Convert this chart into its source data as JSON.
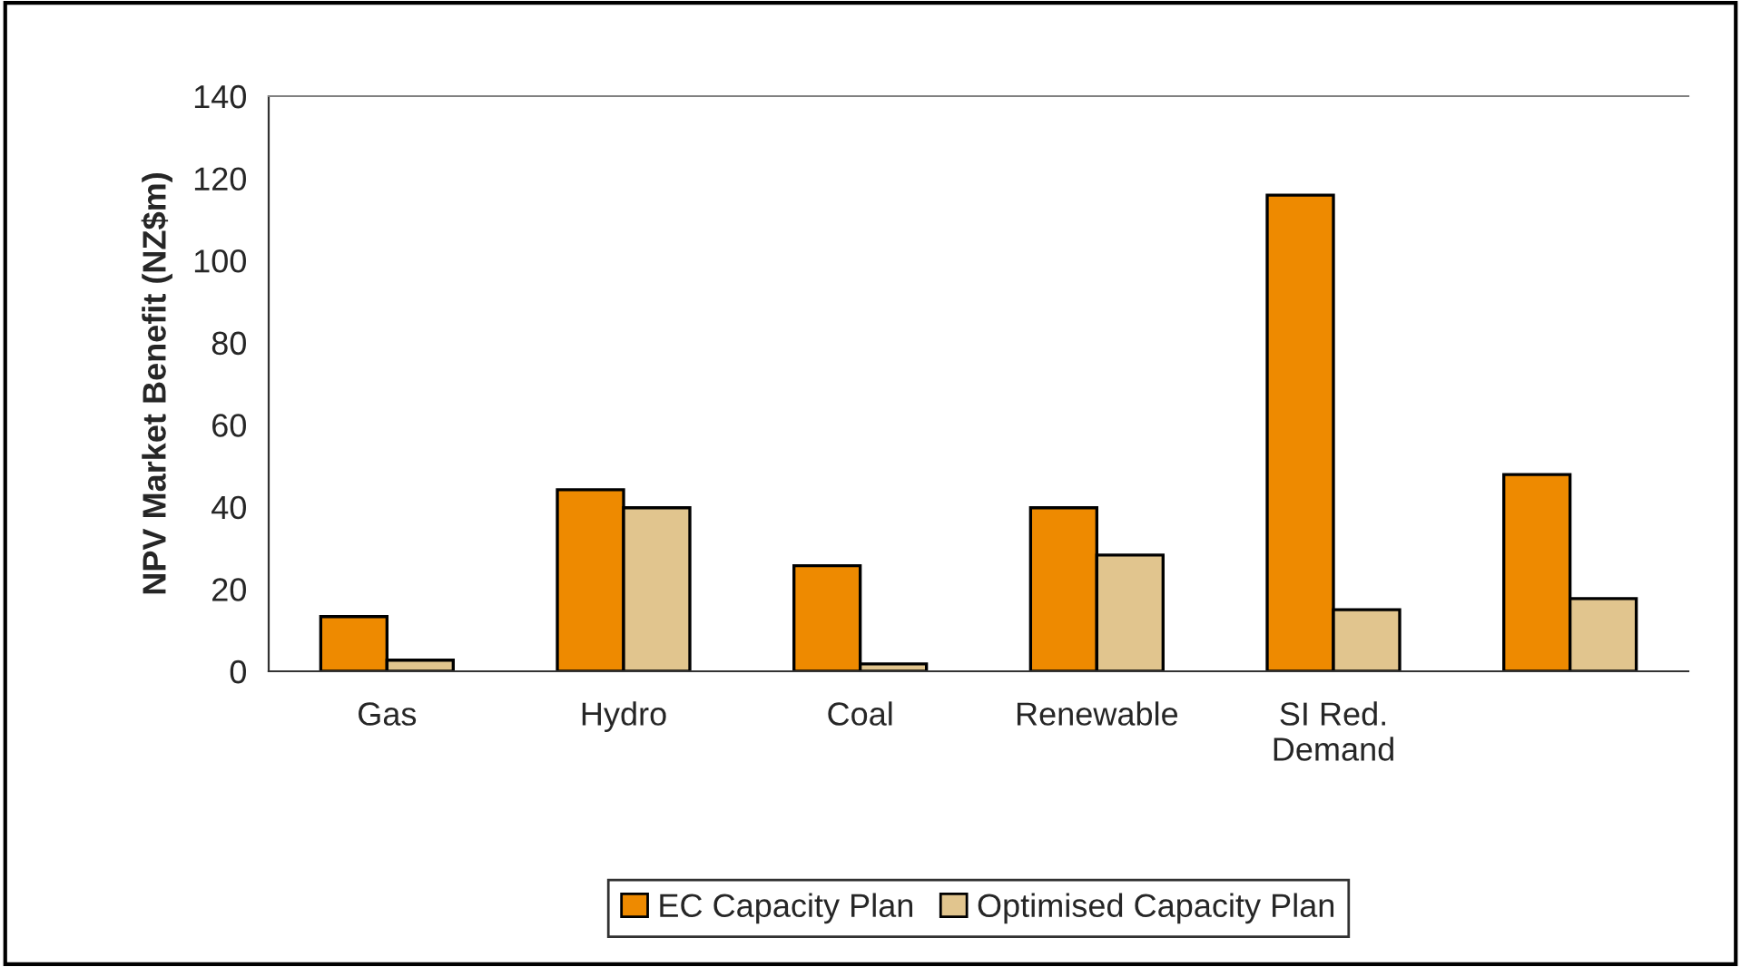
{
  "chart_data": {
    "type": "bar",
    "ylabel": "NPV Market Benefit (NZ$m)",
    "categories": [
      "Gas",
      "Hydro",
      "Coal",
      "Renewable",
      "SI Red.\nDemand",
      null
    ],
    "series": [
      {
        "name": "EC Capacity Plan",
        "color": "#ee8a00",
        "values": [
          13.3,
          44.2,
          25.7,
          39.8,
          115.9,
          47.9
        ]
      },
      {
        "name": "Optimised Capacity Plan",
        "color": "#e1c58e",
        "values": [
          2.7,
          39.8,
          1.8,
          28.3,
          15.0,
          17.7
        ]
      }
    ],
    "ylim": [
      0,
      140
    ],
    "yticks": [
      0,
      20,
      40,
      60,
      80,
      100,
      120,
      140
    ],
    "grid": false,
    "legend": "bottom"
  }
}
